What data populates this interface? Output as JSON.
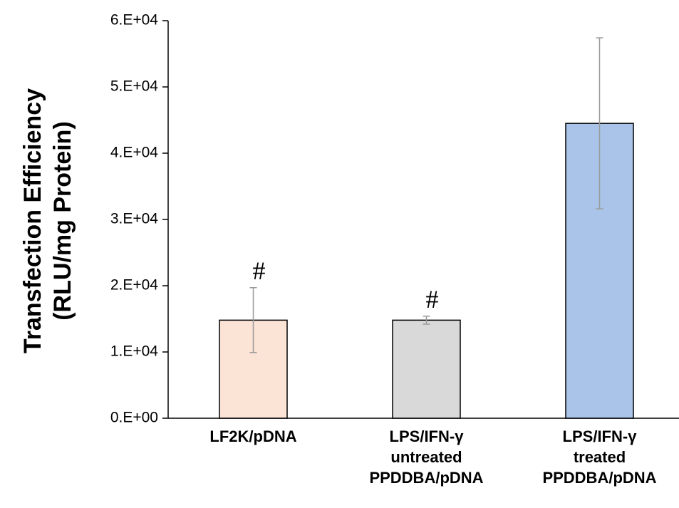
{
  "chart_data": {
    "type": "bar",
    "ylabel": [
      "Transfection Efficiency",
      "(RLU/mg Protein)"
    ],
    "categories": [
      [
        "LF2K/pDNA"
      ],
      [
        "LPS/IFN-γ",
        "untreated",
        "PPDDBA/pDNA"
      ],
      [
        "LPS/IFN-γ",
        "treated",
        "PPDDBA/pDNA"
      ]
    ],
    "values": [
      14800,
      14800,
      44500
    ],
    "errors": [
      4900,
      600,
      12900
    ],
    "colors": [
      "#fbe3d6",
      "#d9d9d9",
      "#a9c4e8"
    ],
    "annotations": [
      "#",
      "#",
      null
    ],
    "ylim": [
      0,
      60000
    ],
    "yticks": [
      {
        "value": 0,
        "label": "0.E+00"
      },
      {
        "value": 10000,
        "label": "1.E+04"
      },
      {
        "value": 20000,
        "label": "2.E+04"
      },
      {
        "value": 30000,
        "label": "3.E+04"
      },
      {
        "value": 40000,
        "label": "4.E+04"
      },
      {
        "value": 50000,
        "label": "5.E+04"
      },
      {
        "value": 60000,
        "label": "6.E+04"
      }
    ],
    "grid": false
  }
}
